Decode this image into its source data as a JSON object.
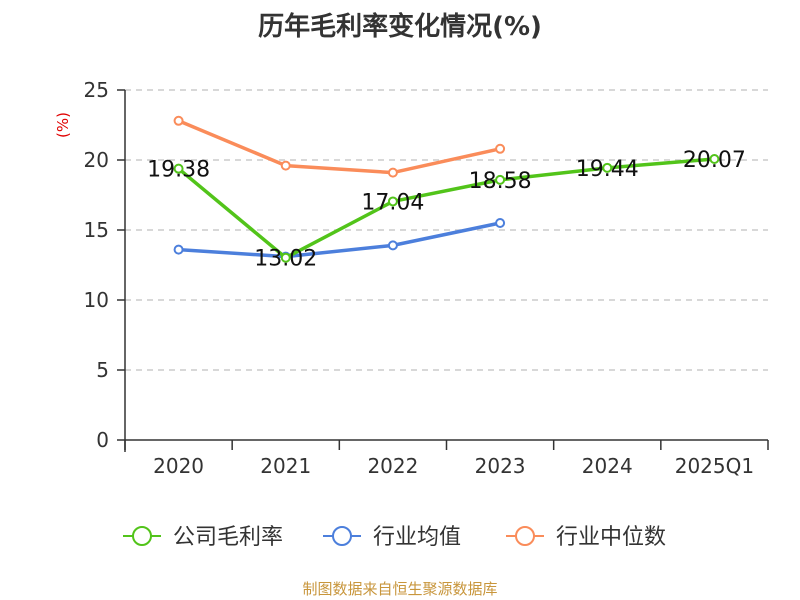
{
  "title": "历年毛利率变化情况(%)",
  "source": "制图数据来自恒生聚源数据库",
  "colors": {
    "company": "#52c41a",
    "industry_avg": "#4c7fdc",
    "industry_median": "#fa8c5a",
    "axis": "#333333",
    "grid": "#cccccc",
    "ylabel": "#e00000",
    "source": "#c8963c"
  },
  "chart_data": {
    "type": "line",
    "title": "历年毛利率变化情况(%)",
    "xlabel": "",
    "ylabel": "(%)",
    "ylim": [
      0,
      25
    ],
    "yticks": [
      0,
      5,
      10,
      15,
      20,
      25
    ],
    "grid": true,
    "legend_position": "bottom",
    "categories": [
      "2020",
      "2021",
      "2022",
      "2023",
      "2024",
      "2025Q1"
    ],
    "series": [
      {
        "name": "公司毛利率",
        "color": "#52c41a",
        "values": [
          19.38,
          13.02,
          17.04,
          18.58,
          19.44,
          20.07
        ],
        "labels": [
          "19.38",
          "13.02",
          "17.04",
          "18.58",
          "19.44",
          "20.07"
        ]
      },
      {
        "name": "行业均值",
        "color": "#4c7fdc",
        "values": [
          13.6,
          13.1,
          13.9,
          15.5,
          null,
          null
        ]
      },
      {
        "name": "行业中位数",
        "color": "#fa8c5a",
        "values": [
          22.8,
          19.6,
          19.1,
          20.8,
          null,
          null
        ]
      }
    ]
  }
}
